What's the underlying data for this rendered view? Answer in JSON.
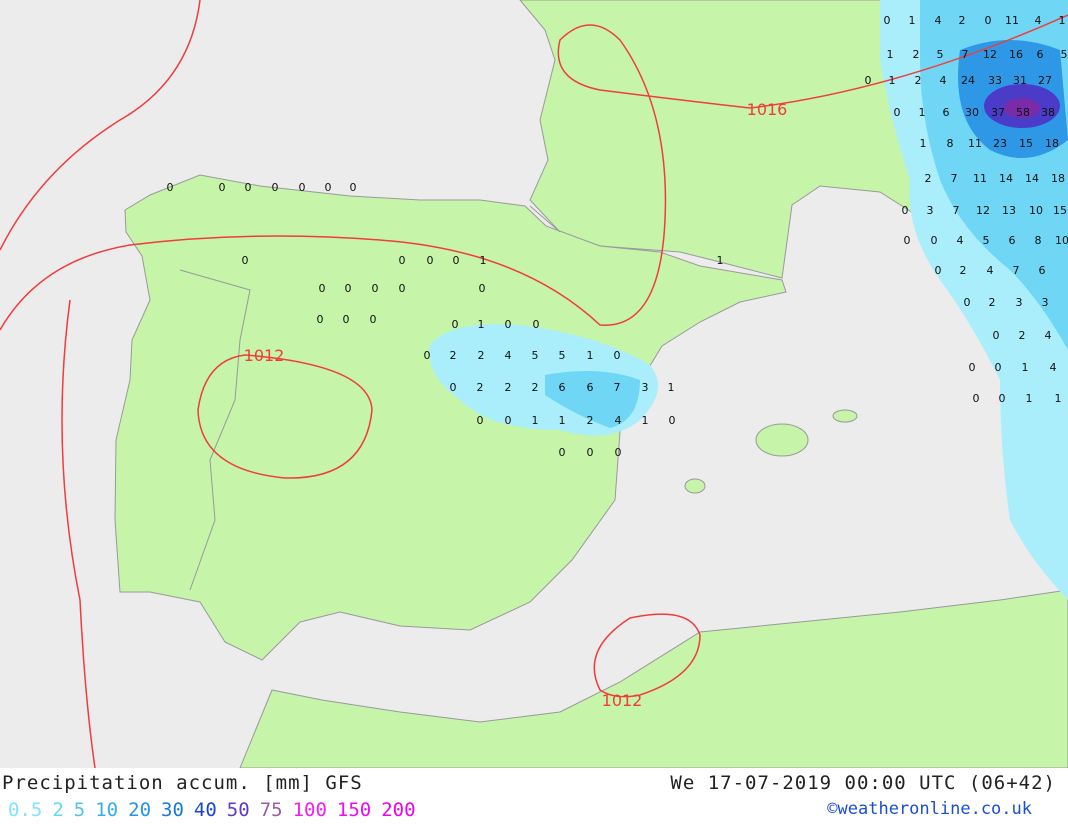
{
  "map": {
    "colors": {
      "sea": "#ececec",
      "land": "#c6f5aa",
      "border": "#999999",
      "isobar": "#f03c3c"
    },
    "isobar_labels": [
      "1016",
      "1012",
      "1012"
    ],
    "precip_values": {
      "spain": [
        [
          "0",
          "1",
          "0",
          "0"
        ],
        [
          "0",
          "2",
          "2",
          "4",
          "5",
          "5",
          "1",
          "0"
        ],
        [
          "0",
          "2",
          "2",
          "2",
          "6",
          "6",
          "7",
          "3",
          "1"
        ],
        [
          "0",
          "0",
          "1",
          "1",
          "2",
          "4",
          "1",
          "0"
        ],
        [
          "0",
          "0",
          "0"
        ]
      ],
      "east": [
        [
          "0",
          "1",
          "4",
          "2",
          "0",
          "11",
          "4",
          "1"
        ],
        [
          "1",
          "2",
          "5",
          "7",
          "12",
          "16",
          "6",
          "5"
        ],
        [
          "0",
          "1",
          "2",
          "4",
          "24",
          "33",
          "31",
          "27"
        ],
        [
          "0",
          "1",
          "6",
          "30",
          "37",
          "58",
          "38"
        ],
        [
          "1",
          "8",
          "11",
          "23",
          "15",
          "18"
        ],
        [
          "2",
          "7",
          "11",
          "14",
          "14",
          "18"
        ],
        [
          "0",
          "3",
          "7",
          "12",
          "13",
          "10",
          "15"
        ],
        [
          "0",
          "0",
          "4",
          "5",
          "6",
          "8",
          "10"
        ],
        [
          "0",
          "2",
          "4",
          "7",
          "6"
        ],
        [
          "0",
          "2",
          "3",
          "3"
        ],
        [
          "0",
          "2",
          "4"
        ],
        [
          "0",
          "0",
          "1",
          "4"
        ],
        [
          "0",
          "0",
          "1",
          "1"
        ]
      ],
      "other": [
        [
          "0",
          "0",
          "0",
          "0",
          "0",
          "0",
          "0"
        ],
        [
          "0",
          "0",
          "0",
          "1",
          "1",
          "0"
        ],
        [
          "0",
          "0",
          "0"
        ],
        [
          "0",
          "0",
          "0",
          "0",
          "0"
        ]
      ]
    }
  },
  "footer": {
    "title": "Precipitation accum. [mm] GFS",
    "datetime": "We 17-07-2019 00:00 UTC (06+42)",
    "credit": "©weatheronline.co.uk",
    "legend": [
      {
        "label": "0.5",
        "color": "#7fe3ff"
      },
      {
        "label": "2",
        "color": "#66d6f5"
      },
      {
        "label": "5",
        "color": "#4cc2f0"
      },
      {
        "label": "10",
        "color": "#34aeee"
      },
      {
        "label": "20",
        "color": "#2196e6"
      },
      {
        "label": "30",
        "color": "#1a78dc"
      },
      {
        "label": "40",
        "color": "#1a46d2"
      },
      {
        "label": "50",
        "color": "#5a3cc8"
      },
      {
        "label": "75",
        "color": "#a05aa0"
      },
      {
        "label": "100",
        "color": "#f01ef0"
      },
      {
        "label": "150",
        "color": "#f00af0"
      },
      {
        "label": "200",
        "color": "#f000f0"
      }
    ]
  }
}
